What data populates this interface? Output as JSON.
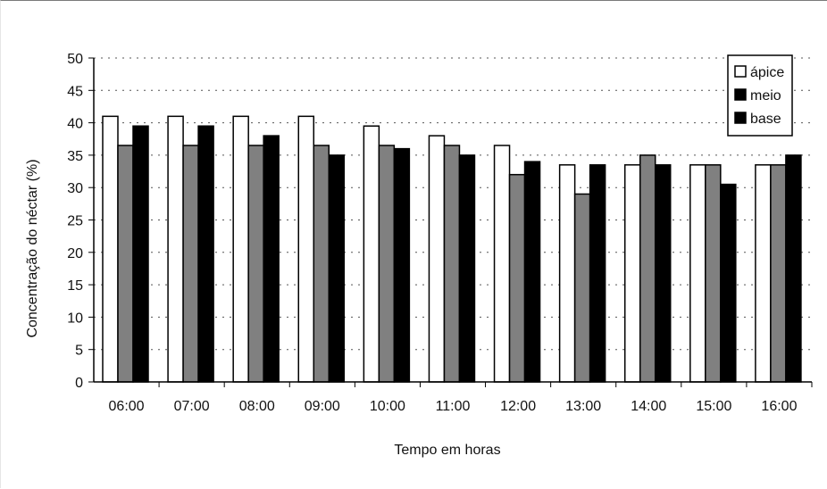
{
  "chart_data": {
    "type": "bar",
    "title": "",
    "xlabel": "Tempo em horas",
    "ylabel": "Concentração do néctar (%)",
    "ylim": [
      0,
      50
    ],
    "yticks": [
      "0",
      "5",
      "10",
      "15",
      "20",
      "25",
      "30",
      "35",
      "40",
      "45",
      "50"
    ],
    "categories": [
      "06:00",
      "07:00",
      "08:00",
      "09:00",
      "10:00",
      "11:00",
      "12:00",
      "13:00",
      "14:00",
      "15:00",
      "16:00"
    ],
    "series": [
      {
        "name": "ápice",
        "color": "#ffffff",
        "values": [
          41,
          41,
          41,
          41,
          39.5,
          38,
          36.5,
          33.5,
          33.5,
          33.5,
          33.5
        ]
      },
      {
        "name": "meio",
        "color": "#808080",
        "values": [
          36.5,
          36.5,
          36.5,
          36.5,
          36.5,
          36.5,
          32,
          29,
          35,
          33.5,
          33.5
        ]
      },
      {
        "name": "base",
        "color": "#000000",
        "values": [
          39.5,
          39.5,
          38,
          35,
          36,
          35,
          34,
          33.5,
          33.5,
          30.5,
          35
        ]
      }
    ],
    "legend": {
      "position": "top-right",
      "entries": [
        "ápice",
        "meio",
        "base"
      ]
    },
    "grid": {
      "horizontal": true,
      "style": "dashed"
    }
  }
}
